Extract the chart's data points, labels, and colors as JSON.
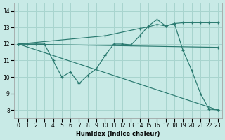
{
  "xlabel": "Humidex (Indice chaleur)",
  "background_color": "#c8eae6",
  "grid_color": "#a8d4ce",
  "line_color": "#2a7a70",
  "xlim": [
    -0.5,
    23.5
  ],
  "ylim": [
    7.5,
    14.5
  ],
  "xticks": [
    0,
    1,
    2,
    3,
    4,
    5,
    6,
    7,
    8,
    9,
    10,
    11,
    12,
    13,
    14,
    15,
    16,
    17,
    18,
    19,
    20,
    21,
    22,
    23
  ],
  "yticks": [
    8,
    9,
    10,
    11,
    12,
    13,
    14
  ],
  "series": [
    {
      "x": [
        0,
        1,
        2,
        3,
        4,
        5,
        6,
        7,
        8,
        9,
        10,
        11,
        12,
        13,
        14,
        15,
        16,
        17,
        18,
        19,
        20,
        21,
        22,
        23
      ],
      "y": [
        12,
        12,
        12,
        12,
        11,
        10.0,
        10.3,
        9.6,
        10.1,
        10.5,
        11.3,
        12.0,
        12.0,
        11.95,
        12.5,
        13.1,
        13.5,
        13.1,
        13.25,
        11.6,
        10.4,
        9.0,
        8.05,
        8.0
      ]
    },
    {
      "x": [
        0,
        23
      ],
      "y": [
        12,
        11.8
      ]
    },
    {
      "x": [
        0,
        10,
        14,
        15,
        16,
        17,
        18,
        19,
        20,
        21,
        22,
        23
      ],
      "y": [
        12,
        12.5,
        12.95,
        13.05,
        13.2,
        13.1,
        13.25,
        13.3,
        13.3,
        13.3,
        13.3,
        13.3
      ]
    },
    {
      "x": [
        0,
        23
      ],
      "y": [
        12,
        8.0
      ]
    }
  ]
}
